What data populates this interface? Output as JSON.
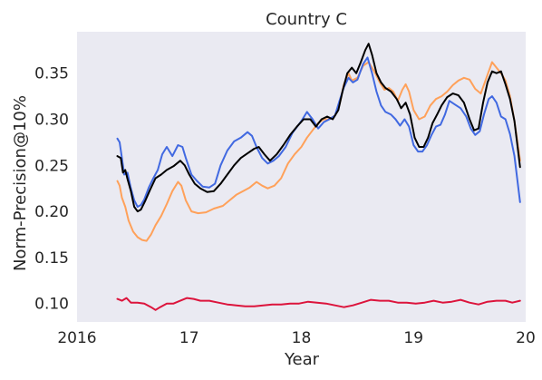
{
  "chart_data": {
    "type": "line",
    "title": "Country C",
    "xlabel": "Year",
    "ylabel": "Norm-Precision@10%",
    "xlim": [
      2016.0,
      2020.0
    ],
    "ylim": [
      0.08,
      0.395
    ],
    "xticks": [
      2016,
      2017,
      2018,
      2019,
      2020
    ],
    "xtick_labels": [
      "2016",
      "17",
      "18",
      "19",
      "20"
    ],
    "yticks": [
      0.1,
      0.15,
      0.2,
      0.25,
      0.3,
      0.35
    ],
    "ytick_labels": [
      "0.10",
      "0.15",
      "0.20",
      "0.25",
      "0.30",
      "0.35"
    ],
    "grid": false,
    "background": "#eaeaf2",
    "series": [
      {
        "color": "#ffa15a",
        "points": [
          [
            2016.36,
            0.233
          ],
          [
            2016.38,
            0.228
          ],
          [
            2016.4,
            0.215
          ],
          [
            2016.43,
            0.205
          ],
          [
            2016.46,
            0.19
          ],
          [
            2016.5,
            0.178
          ],
          [
            2016.54,
            0.172
          ],
          [
            2016.58,
            0.169
          ],
          [
            2016.62,
            0.168
          ],
          [
            2016.66,
            0.175
          ],
          [
            2016.7,
            0.185
          ],
          [
            2016.75,
            0.195
          ],
          [
            2016.8,
            0.208
          ],
          [
            2016.85,
            0.222
          ],
          [
            2016.9,
            0.232
          ],
          [
            2016.93,
            0.228
          ],
          [
            2016.97,
            0.212
          ],
          [
            2017.02,
            0.2
          ],
          [
            2017.08,
            0.198
          ],
          [
            2017.15,
            0.199
          ],
          [
            2017.22,
            0.203
          ],
          [
            2017.3,
            0.206
          ],
          [
            2017.36,
            0.212
          ],
          [
            2017.42,
            0.218
          ],
          [
            2017.48,
            0.222
          ],
          [
            2017.54,
            0.226
          ],
          [
            2017.6,
            0.232
          ],
          [
            2017.65,
            0.228
          ],
          [
            2017.7,
            0.225
          ],
          [
            2017.76,
            0.228
          ],
          [
            2017.82,
            0.236
          ],
          [
            2017.88,
            0.252
          ],
          [
            2017.94,
            0.262
          ],
          [
            2018.0,
            0.27
          ],
          [
            2018.05,
            0.28
          ],
          [
            2018.1,
            0.288
          ],
          [
            2018.15,
            0.296
          ],
          [
            2018.2,
            0.3
          ],
          [
            2018.25,
            0.3
          ],
          [
            2018.3,
            0.304
          ],
          [
            2018.34,
            0.316
          ],
          [
            2018.38,
            0.338
          ],
          [
            2018.42,
            0.35
          ],
          [
            2018.45,
            0.342
          ],
          [
            2018.5,
            0.345
          ],
          [
            2018.55,
            0.358
          ],
          [
            2018.6,
            0.362
          ],
          [
            2018.65,
            0.352
          ],
          [
            2018.7,
            0.34
          ],
          [
            2018.74,
            0.332
          ],
          [
            2018.78,
            0.334
          ],
          [
            2018.82,
            0.33
          ],
          [
            2018.86,
            0.32
          ],
          [
            2018.9,
            0.332
          ],
          [
            2018.93,
            0.338
          ],
          [
            2018.96,
            0.33
          ],
          [
            2019.0,
            0.31
          ],
          [
            2019.05,
            0.3
          ],
          [
            2019.1,
            0.303
          ],
          [
            2019.15,
            0.315
          ],
          [
            2019.2,
            0.322
          ],
          [
            2019.25,
            0.325
          ],
          [
            2019.3,
            0.33
          ],
          [
            2019.35,
            0.337
          ],
          [
            2019.4,
            0.342
          ],
          [
            2019.45,
            0.345
          ],
          [
            2019.5,
            0.343
          ],
          [
            2019.55,
            0.333
          ],
          [
            2019.6,
            0.328
          ],
          [
            2019.65,
            0.345
          ],
          [
            2019.7,
            0.362
          ],
          [
            2019.74,
            0.356
          ],
          [
            2019.78,
            0.35
          ],
          [
            2019.82,
            0.342
          ],
          [
            2019.86,
            0.325
          ],
          [
            2019.9,
            0.298
          ],
          [
            2019.95,
            0.255
          ]
        ]
      },
      {
        "color": "#4169e1",
        "points": [
          [
            2016.36,
            0.279
          ],
          [
            2016.38,
            0.275
          ],
          [
            2016.4,
            0.258
          ],
          [
            2016.42,
            0.24
          ],
          [
            2016.45,
            0.242
          ],
          [
            2016.48,
            0.225
          ],
          [
            2016.51,
            0.212
          ],
          [
            2016.54,
            0.205
          ],
          [
            2016.57,
            0.207
          ],
          [
            2016.6,
            0.213
          ],
          [
            2016.64,
            0.226
          ],
          [
            2016.68,
            0.236
          ],
          [
            2016.72,
            0.245
          ],
          [
            2016.76,
            0.262
          ],
          [
            2016.8,
            0.27
          ],
          [
            2016.85,
            0.26
          ],
          [
            2016.9,
            0.272
          ],
          [
            2016.94,
            0.27
          ],
          [
            2016.97,
            0.258
          ],
          [
            2017.02,
            0.24
          ],
          [
            2017.07,
            0.233
          ],
          [
            2017.12,
            0.227
          ],
          [
            2017.18,
            0.226
          ],
          [
            2017.23,
            0.23
          ],
          [
            2017.28,
            0.25
          ],
          [
            2017.34,
            0.266
          ],
          [
            2017.4,
            0.276
          ],
          [
            2017.46,
            0.28
          ],
          [
            2017.52,
            0.286
          ],
          [
            2017.56,
            0.282
          ],
          [
            2017.6,
            0.27
          ],
          [
            2017.65,
            0.258
          ],
          [
            2017.7,
            0.252
          ],
          [
            2017.75,
            0.255
          ],
          [
            2017.8,
            0.26
          ],
          [
            2017.86,
            0.27
          ],
          [
            2017.92,
            0.285
          ],
          [
            2018.0,
            0.298
          ],
          [
            2018.05,
            0.308
          ],
          [
            2018.1,
            0.3
          ],
          [
            2018.15,
            0.29
          ],
          [
            2018.2,
            0.297
          ],
          [
            2018.25,
            0.3
          ],
          [
            2018.3,
            0.304
          ],
          [
            2018.34,
            0.32
          ],
          [
            2018.38,
            0.335
          ],
          [
            2018.42,
            0.345
          ],
          [
            2018.46,
            0.34
          ],
          [
            2018.5,
            0.343
          ],
          [
            2018.55,
            0.36
          ],
          [
            2018.59,
            0.367
          ],
          [
            2018.63,
            0.35
          ],
          [
            2018.67,
            0.33
          ],
          [
            2018.71,
            0.315
          ],
          [
            2018.75,
            0.308
          ],
          [
            2018.8,
            0.305
          ],
          [
            2018.84,
            0.3
          ],
          [
            2018.88,
            0.293
          ],
          [
            2018.92,
            0.3
          ],
          [
            2018.96,
            0.292
          ],
          [
            2019.0,
            0.272
          ],
          [
            2019.04,
            0.265
          ],
          [
            2019.08,
            0.265
          ],
          [
            2019.12,
            0.272
          ],
          [
            2019.16,
            0.283
          ],
          [
            2019.2,
            0.292
          ],
          [
            2019.24,
            0.294
          ],
          [
            2019.28,
            0.305
          ],
          [
            2019.32,
            0.32
          ],
          [
            2019.37,
            0.316
          ],
          [
            2019.42,
            0.312
          ],
          [
            2019.47,
            0.303
          ],
          [
            2019.51,
            0.29
          ],
          [
            2019.55,
            0.283
          ],
          [
            2019.59,
            0.287
          ],
          [
            2019.63,
            0.306
          ],
          [
            2019.67,
            0.322
          ],
          [
            2019.7,
            0.325
          ],
          [
            2019.74,
            0.318
          ],
          [
            2019.78,
            0.303
          ],
          [
            2019.82,
            0.3
          ],
          [
            2019.86,
            0.284
          ],
          [
            2019.9,
            0.26
          ],
          [
            2019.95,
            0.21
          ]
        ]
      },
      {
        "color": "#000000",
        "points": [
          [
            2016.36,
            0.26
          ],
          [
            2016.39,
            0.258
          ],
          [
            2016.41,
            0.242
          ],
          [
            2016.43,
            0.245
          ],
          [
            2016.45,
            0.235
          ],
          [
            2016.48,
            0.222
          ],
          [
            2016.51,
            0.205
          ],
          [
            2016.54,
            0.2
          ],
          [
            2016.57,
            0.202
          ],
          [
            2016.61,
            0.212
          ],
          [
            2016.65,
            0.223
          ],
          [
            2016.7,
            0.236
          ],
          [
            2016.75,
            0.24
          ],
          [
            2016.8,
            0.245
          ],
          [
            2016.86,
            0.249
          ],
          [
            2016.92,
            0.255
          ],
          [
            2016.96,
            0.25
          ],
          [
            2017.0,
            0.24
          ],
          [
            2017.05,
            0.23
          ],
          [
            2017.1,
            0.225
          ],
          [
            2017.16,
            0.221
          ],
          [
            2017.22,
            0.222
          ],
          [
            2017.28,
            0.23
          ],
          [
            2017.34,
            0.24
          ],
          [
            2017.4,
            0.25
          ],
          [
            2017.46,
            0.258
          ],
          [
            2017.52,
            0.263
          ],
          [
            2017.58,
            0.268
          ],
          [
            2017.62,
            0.27
          ],
          [
            2017.67,
            0.262
          ],
          [
            2017.72,
            0.255
          ],
          [
            2017.78,
            0.262
          ],
          [
            2017.84,
            0.272
          ],
          [
            2017.9,
            0.283
          ],
          [
            2017.96,
            0.292
          ],
          [
            2018.02,
            0.3
          ],
          [
            2018.08,
            0.3
          ],
          [
            2018.13,
            0.292
          ],
          [
            2018.18,
            0.3
          ],
          [
            2018.23,
            0.303
          ],
          [
            2018.28,
            0.3
          ],
          [
            2018.33,
            0.31
          ],
          [
            2018.37,
            0.332
          ],
          [
            2018.41,
            0.35
          ],
          [
            2018.45,
            0.356
          ],
          [
            2018.49,
            0.35
          ],
          [
            2018.53,
            0.362
          ],
          [
            2018.57,
            0.375
          ],
          [
            2018.6,
            0.382
          ],
          [
            2018.63,
            0.37
          ],
          [
            2018.67,
            0.35
          ],
          [
            2018.71,
            0.34
          ],
          [
            2018.75,
            0.334
          ],
          [
            2018.8,
            0.33
          ],
          [
            2018.85,
            0.322
          ],
          [
            2018.89,
            0.312
          ],
          [
            2018.93,
            0.318
          ],
          [
            2018.97,
            0.305
          ],
          [
            2019.01,
            0.28
          ],
          [
            2019.05,
            0.27
          ],
          [
            2019.09,
            0.27
          ],
          [
            2019.13,
            0.28
          ],
          [
            2019.17,
            0.296
          ],
          [
            2019.21,
            0.305
          ],
          [
            2019.25,
            0.315
          ],
          [
            2019.3,
            0.324
          ],
          [
            2019.35,
            0.328
          ],
          [
            2019.4,
            0.326
          ],
          [
            2019.45,
            0.318
          ],
          [
            2019.5,
            0.3
          ],
          [
            2019.54,
            0.288
          ],
          [
            2019.58,
            0.29
          ],
          [
            2019.62,
            0.318
          ],
          [
            2019.66,
            0.34
          ],
          [
            2019.7,
            0.352
          ],
          [
            2019.74,
            0.35
          ],
          [
            2019.78,
            0.352
          ],
          [
            2019.82,
            0.338
          ],
          [
            2019.86,
            0.322
          ],
          [
            2019.9,
            0.298
          ],
          [
            2019.95,
            0.248
          ]
        ]
      },
      {
        "color": "#dc143c",
        "points": [
          [
            2016.36,
            0.105
          ],
          [
            2016.4,
            0.103
          ],
          [
            2016.44,
            0.106
          ],
          [
            2016.48,
            0.101
          ],
          [
            2016.54,
            0.101
          ],
          [
            2016.6,
            0.1
          ],
          [
            2016.66,
            0.096
          ],
          [
            2016.7,
            0.093
          ],
          [
            2016.74,
            0.096
          ],
          [
            2016.8,
            0.1
          ],
          [
            2016.86,
            0.1
          ],
          [
            2016.92,
            0.103
          ],
          [
            2016.98,
            0.106
          ],
          [
            2017.04,
            0.105
          ],
          [
            2017.1,
            0.103
          ],
          [
            2017.18,
            0.103
          ],
          [
            2017.26,
            0.101
          ],
          [
            2017.34,
            0.099
          ],
          [
            2017.42,
            0.098
          ],
          [
            2017.5,
            0.097
          ],
          [
            2017.58,
            0.097
          ],
          [
            2017.66,
            0.098
          ],
          [
            2017.74,
            0.099
          ],
          [
            2017.82,
            0.099
          ],
          [
            2017.9,
            0.1
          ],
          [
            2017.98,
            0.1
          ],
          [
            2018.06,
            0.102
          ],
          [
            2018.14,
            0.101
          ],
          [
            2018.22,
            0.1
          ],
          [
            2018.3,
            0.098
          ],
          [
            2018.38,
            0.096
          ],
          [
            2018.46,
            0.098
          ],
          [
            2018.54,
            0.101
          ],
          [
            2018.62,
            0.104
          ],
          [
            2018.7,
            0.103
          ],
          [
            2018.78,
            0.103
          ],
          [
            2018.86,
            0.101
          ],
          [
            2018.94,
            0.101
          ],
          [
            2019.02,
            0.1
          ],
          [
            2019.1,
            0.101
          ],
          [
            2019.18,
            0.103
          ],
          [
            2019.26,
            0.101
          ],
          [
            2019.34,
            0.102
          ],
          [
            2019.42,
            0.104
          ],
          [
            2019.5,
            0.101
          ],
          [
            2019.58,
            0.099
          ],
          [
            2019.66,
            0.102
          ],
          [
            2019.74,
            0.103
          ],
          [
            2019.82,
            0.103
          ],
          [
            2019.88,
            0.101
          ],
          [
            2019.95,
            0.103
          ]
        ]
      }
    ]
  }
}
